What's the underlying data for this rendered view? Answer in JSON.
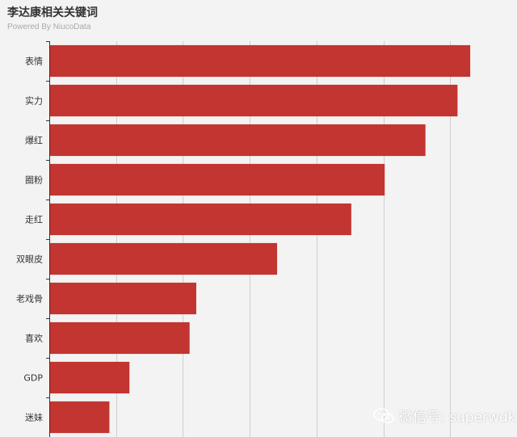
{
  "title": "李达康相关关键词",
  "subtitle": "Powered By NiucoData",
  "watermark": {
    "icon": "wechat-icon",
    "text": "微信号: superwdk"
  },
  "colors": {
    "bar": "#c23531",
    "grid": "#cfcfcf",
    "axis": "#333333",
    "background": "#f3f3f3"
  },
  "chart_data": {
    "type": "bar",
    "orientation": "horizontal",
    "categories": [
      "表情",
      "实力",
      "爆红",
      "圈粉",
      "走红",
      "双眼皮",
      "老戏骨",
      "喜欢",
      "GDP",
      "迷妹"
    ],
    "values": [
      630,
      611,
      563,
      502,
      452,
      341,
      220,
      210,
      120,
      90
    ],
    "xlim": [
      0,
      700
    ],
    "grid": true,
    "title": "李达康相关关键词",
    "xlabel": "",
    "ylabel": ""
  }
}
